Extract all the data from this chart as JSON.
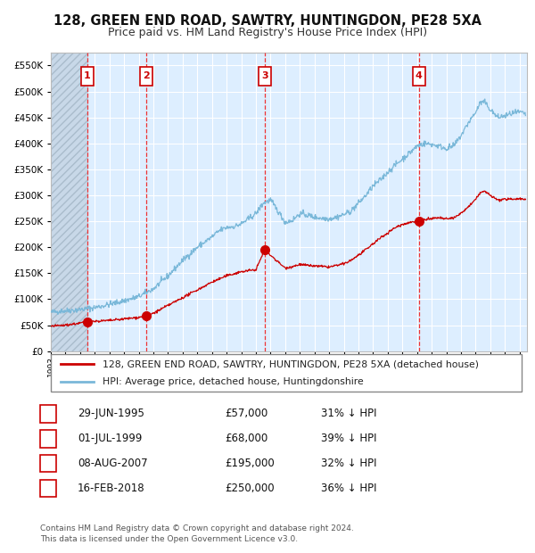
{
  "title": "128, GREEN END ROAD, SAWTRY, HUNTINGDON, PE28 5XA",
  "subtitle": "Price paid vs. HM Land Registry's House Price Index (HPI)",
  "footer": "Contains HM Land Registry data © Crown copyright and database right 2024.\nThis data is licensed under the Open Government Licence v3.0.",
  "legend_line1": "128, GREEN END ROAD, SAWTRY, HUNTINGDON, PE28 5XA (detached house)",
  "legend_line2": "HPI: Average price, detached house, Huntingdonshire",
  "transactions": [
    {
      "num": 1,
      "date": "29-JUN-1995",
      "price": 57000,
      "hpi_pct": "31% ↓ HPI",
      "x_year": 1995.49
    },
    {
      "num": 2,
      "date": "01-JUL-1999",
      "price": 68000,
      "hpi_pct": "39% ↓ HPI",
      "x_year": 1999.5
    },
    {
      "num": 3,
      "date": "08-AUG-2007",
      "price": 195000,
      "hpi_pct": "32% ↓ HPI",
      "x_year": 2007.6
    },
    {
      "num": 4,
      "date": "16-FEB-2018",
      "price": 250000,
      "hpi_pct": "36% ↓ HPI",
      "x_year": 2018.12
    }
  ],
  "ylim": [
    0,
    575000
  ],
  "xlim_start": 1993.0,
  "xlim_end": 2025.5,
  "yticks": [
    0,
    50000,
    100000,
    150000,
    200000,
    250000,
    300000,
    350000,
    400000,
    450000,
    500000,
    550000
  ],
  "ytick_labels": [
    "£0",
    "£50K",
    "£100K",
    "£150K",
    "£200K",
    "£250K",
    "£300K",
    "£350K",
    "£400K",
    "£450K",
    "£500K",
    "£550K"
  ],
  "hpi_color": "#7ab8d9",
  "price_color": "#cc0000",
  "bg_color": "#ddeeff",
  "hatch_bg_color": "#c8d8e8",
  "grid_color": "#ffffff",
  "dashed_line_color": "#ee3333",
  "marker_color": "#cc0000",
  "box_color": "#cc0000",
  "hpi_anchors": [
    [
      1993.0,
      75000
    ],
    [
      1994.0,
      78000
    ],
    [
      1995.0,
      80000
    ],
    [
      1996.0,
      84000
    ],
    [
      1997.0,
      90000
    ],
    [
      1998.0,
      97000
    ],
    [
      1999.0,
      105000
    ],
    [
      2000.0,
      120000
    ],
    [
      2001.0,
      145000
    ],
    [
      2002.0,
      175000
    ],
    [
      2003.0,
      200000
    ],
    [
      2004.0,
      220000
    ],
    [
      2004.5,
      232000
    ],
    [
      2005.0,
      238000
    ],
    [
      2005.5,
      240000
    ],
    [
      2006.0,
      245000
    ],
    [
      2007.0,
      265000
    ],
    [
      2007.5,
      285000
    ],
    [
      2008.0,
      291000
    ],
    [
      2008.5,
      270000
    ],
    [
      2009.0,
      248000
    ],
    [
      2009.5,
      252000
    ],
    [
      2010.0,
      265000
    ],
    [
      2010.5,
      262000
    ],
    [
      2011.0,
      258000
    ],
    [
      2011.5,
      256000
    ],
    [
      2012.0,
      255000
    ],
    [
      2012.5,
      258000
    ],
    [
      2013.0,
      263000
    ],
    [
      2013.5,
      270000
    ],
    [
      2014.0,
      285000
    ],
    [
      2014.5,
      300000
    ],
    [
      2015.0,
      318000
    ],
    [
      2015.5,
      330000
    ],
    [
      2016.0,
      345000
    ],
    [
      2016.5,
      358000
    ],
    [
      2017.0,
      370000
    ],
    [
      2017.5,
      382000
    ],
    [
      2018.0,
      395000
    ],
    [
      2018.5,
      400000
    ],
    [
      2019.0,
      398000
    ],
    [
      2019.5,
      395000
    ],
    [
      2020.0,
      390000
    ],
    [
      2020.5,
      395000
    ],
    [
      2021.0,
      415000
    ],
    [
      2021.5,
      440000
    ],
    [
      2022.0,
      460000
    ],
    [
      2022.3,
      478000
    ],
    [
      2022.6,
      480000
    ],
    [
      2023.0,
      465000
    ],
    [
      2023.5,
      450000
    ],
    [
      2024.0,
      453000
    ],
    [
      2024.5,
      458000
    ],
    [
      2025.0,
      460000
    ],
    [
      2025.4,
      456000
    ]
  ],
  "price_anchors": [
    [
      1993.0,
      48000
    ],
    [
      1994.0,
      50000
    ],
    [
      1995.0,
      54000
    ],
    [
      1995.49,
      57000
    ],
    [
      1996.0,
      57500
    ],
    [
      1997.0,
      59000
    ],
    [
      1998.0,
      62000
    ],
    [
      1999.0,
      65000
    ],
    [
      1999.5,
      68000
    ],
    [
      2000.0,
      73000
    ],
    [
      2001.0,
      88000
    ],
    [
      2002.0,
      103000
    ],
    [
      2003.0,
      118000
    ],
    [
      2004.0,
      133000
    ],
    [
      2005.0,
      145000
    ],
    [
      2006.0,
      153000
    ],
    [
      2007.0,
      157000
    ],
    [
      2007.6,
      195000
    ],
    [
      2008.0,
      185000
    ],
    [
      2008.5,
      172000
    ],
    [
      2009.0,
      160000
    ],
    [
      2009.5,
      163000
    ],
    [
      2010.0,
      167000
    ],
    [
      2010.5,
      165000
    ],
    [
      2011.0,
      164000
    ],
    [
      2011.5,
      163000
    ],
    [
      2012.0,
      162000
    ],
    [
      2012.5,
      165000
    ],
    [
      2013.0,
      168000
    ],
    [
      2013.5,
      175000
    ],
    [
      2014.0,
      185000
    ],
    [
      2014.5,
      195000
    ],
    [
      2015.0,
      207000
    ],
    [
      2015.5,
      218000
    ],
    [
      2016.0,
      228000
    ],
    [
      2016.5,
      238000
    ],
    [
      2017.0,
      244000
    ],
    [
      2017.5,
      248000
    ],
    [
      2018.0,
      250000
    ],
    [
      2018.12,
      250000
    ],
    [
      2018.5,
      253000
    ],
    [
      2019.0,
      255000
    ],
    [
      2019.5,
      257000
    ],
    [
      2020.0,
      254000
    ],
    [
      2020.5,
      257000
    ],
    [
      2021.0,
      265000
    ],
    [
      2021.5,
      278000
    ],
    [
      2022.0,
      292000
    ],
    [
      2022.3,
      305000
    ],
    [
      2022.6,
      308000
    ],
    [
      2023.0,
      300000
    ],
    [
      2023.5,
      291000
    ],
    [
      2024.0,
      292000
    ],
    [
      2024.5,
      293000
    ],
    [
      2025.0,
      294000
    ],
    [
      2025.4,
      292000
    ]
  ]
}
